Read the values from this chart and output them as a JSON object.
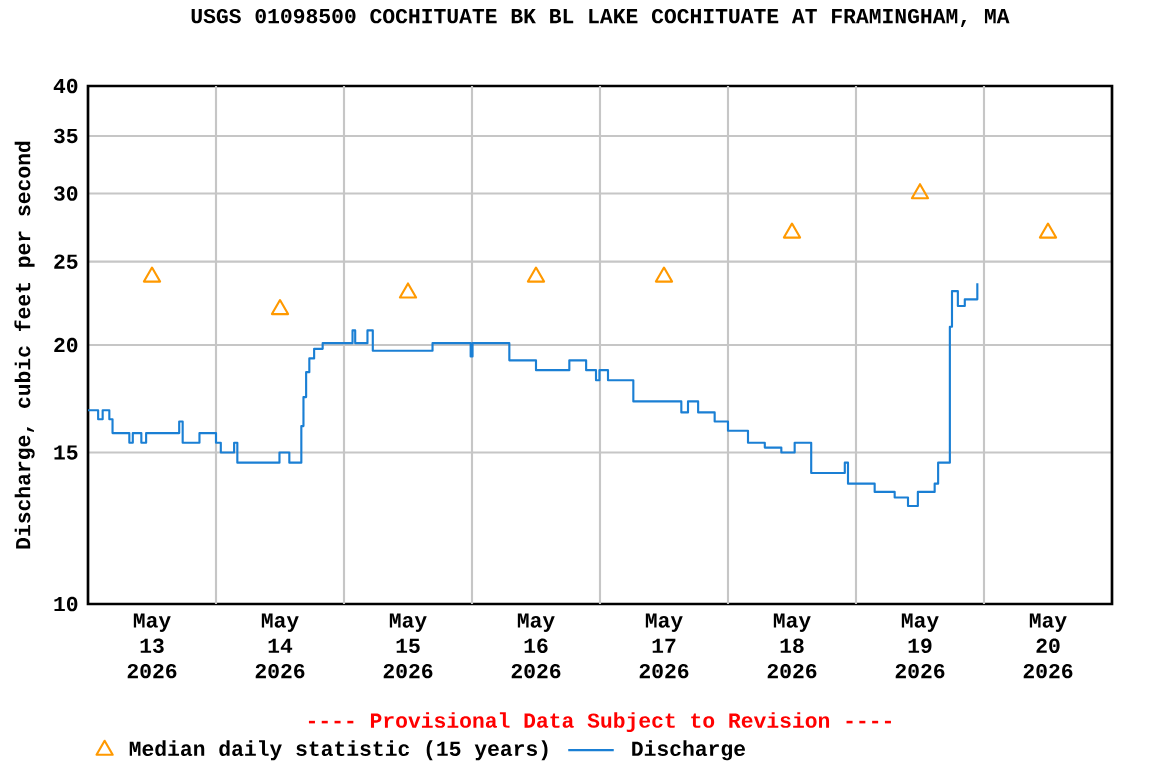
{
  "chart_data": {
    "type": "step",
    "title": "USGS 01098500 COCHITUATE BK BL LAKE COCHITUATE AT FRAMINGHAM, MA",
    "ylabel": "Discharge, cubic feet per second",
    "annotations": [
      "---- Provisional Data Subject to Revision ----"
    ],
    "xlim": [
      "2026-05-13T00:00",
      "2026-05-21T00:00"
    ],
    "xticks": [
      {
        "value": "2026-05-13T12:00",
        "label": "May 13 2026"
      },
      {
        "value": "2026-05-14T12:00",
        "label": "May 14 2026"
      },
      {
        "value": "2026-05-15T12:00",
        "label": "May 15 2026"
      },
      {
        "value": "2026-05-16T12:00",
        "label": "May 16 2026"
      },
      {
        "value": "2026-05-17T12:00",
        "label": "May 17 2026"
      },
      {
        "value": "2026-05-18T12:00",
        "label": "May 18 2026"
      },
      {
        "value": "2026-05-19T12:00",
        "label": "May 19 2026"
      },
      {
        "value": "2026-05-20T12:00",
        "label": "May 20 2026"
      },
      {
        "value": "2026-05-14T00:00",
        "label": null
      },
      {
        "value": "2026-05-15T00:00",
        "label": null
      },
      {
        "value": "2026-05-16T00:00",
        "label": null
      },
      {
        "value": "2026-05-17T00:00",
        "label": null
      },
      {
        "value": "2026-05-18T00:00",
        "label": null
      },
      {
        "value": "2026-05-19T00:00",
        "label": null
      },
      {
        "value": "2026-05-20T00:00",
        "label": null
      }
    ],
    "ylim": [
      10,
      40
    ],
    "yticks": [
      10,
      15,
      20,
      25,
      30,
      35,
      40
    ],
    "log": "y",
    "grid": true,
    "legend": "bottom",
    "series": [
      {
        "name": "Median daily statistic (15 years)",
        "type": "scatter",
        "marker": "triangle",
        "color": "#ff9900",
        "x": [
          "2026-05-13T12:00",
          "2026-05-14T12:00",
          "2026-05-15T12:00",
          "2026-05-16T12:00",
          "2026-05-17T12:00",
          "2026-05-18T12:00",
          "2026-05-19T12:00",
          "2026-05-20T12:00"
        ],
        "values": [
          24,
          22,
          23,
          24,
          24,
          27,
          30,
          27
        ]
      },
      {
        "name": "Discharge",
        "marker": "none",
        "color": "#1a7fd4",
        "x": [
          "2026-05-13T00:00",
          "2026-05-13T01:54",
          "2026-05-13T02:45",
          "2026-05-13T04:00",
          "2026-05-13T04:36",
          "2026-05-13T07:45",
          "2026-05-13T08:24",
          "2026-05-13T10:00",
          "2026-05-13T10:54",
          "2026-05-13T16:30",
          "2026-05-13T17:06",
          "2026-05-13T17:45",
          "2026-05-13T20:54",
          "2026-05-14T00:00",
          "2026-05-14T00:54",
          "2026-05-14T03:24",
          "2026-05-14T04:00",
          "2026-05-14T10:36",
          "2026-05-14T11:54",
          "2026-05-14T13:45",
          "2026-05-14T15:36",
          "2026-05-14T16:00",
          "2026-05-14T16:24",
          "2026-05-14T16:54",
          "2026-05-14T17:30",
          "2026-05-14T18:24",
          "2026-05-14T20:00",
          "2026-05-15T01:24",
          "2026-05-15T01:36",
          "2026-05-15T02:06",
          "2026-05-15T04:24",
          "2026-05-15T05:24",
          "2026-05-15T16:00",
          "2026-05-15T16:36",
          "2026-05-15T23:30",
          "2026-05-15T23:45",
          "2026-05-16T00:06",
          "2026-05-16T06:24",
          "2026-05-16T07:00",
          "2026-05-16T11:24",
          "2026-05-16T12:00",
          "2026-05-16T16:24",
          "2026-05-16T18:15",
          "2026-05-16T21:24",
          "2026-05-16T23:15",
          "2026-05-16T23:54",
          "2026-05-17T01:30",
          "2026-05-17T04:36",
          "2026-05-17T06:15",
          "2026-05-17T09:00",
          "2026-05-17T15:15",
          "2026-05-17T16:30",
          "2026-05-17T18:24",
          "2026-05-17T21:30",
          "2026-05-18T00:00",
          "2026-05-18T03:06",
          "2026-05-18T03:45",
          "2026-05-18T06:54",
          "2026-05-18T10:00",
          "2026-05-18T12:30",
          "2026-05-18T14:24",
          "2026-05-18T15:36",
          "2026-05-18T20:00",
          "2026-05-18T21:54",
          "2026-05-18T22:30",
          "2026-05-19T03:30",
          "2026-05-19T07:15",
          "2026-05-19T09:45",
          "2026-05-19T11:00",
          "2026-05-19T11:36",
          "2026-05-19T14:45",
          "2026-05-19T15:24",
          "2026-05-19T17:00",
          "2026-05-19T17:36",
          "2026-05-19T18:00",
          "2026-05-19T19:06",
          "2026-05-19T20:24",
          "2026-05-19T22:15",
          "2026-05-19T22:45"
        ],
        "values": [
          16.8,
          16.4,
          16.8,
          16.4,
          15.8,
          15.4,
          15.8,
          15.4,
          15.8,
          15.8,
          16.3,
          15.4,
          15.8,
          15.4,
          15.0,
          15.4,
          14.6,
          14.6,
          15.0,
          14.6,
          14.6,
          16.1,
          17.4,
          18.6,
          19.3,
          19.8,
          20.1,
          20.1,
          20.8,
          20.1,
          20.8,
          19.7,
          19.7,
          20.1,
          20.1,
          19.4,
          20.1,
          20.1,
          19.2,
          19.2,
          18.7,
          18.7,
          19.2,
          18.7,
          18.2,
          18.7,
          18.2,
          18.2,
          17.2,
          17.2,
          16.7,
          17.2,
          16.7,
          16.3,
          15.9,
          15.9,
          15.4,
          15.2,
          15.0,
          15.4,
          15.4,
          14.2,
          14.2,
          14.6,
          13.8,
          13.5,
          13.3,
          13.0,
          13.0,
          13.5,
          13.8,
          14.6,
          14.6,
          21.0,
          23.1,
          22.2,
          22.6,
          22.6,
          23.6
        ]
      }
    ]
  }
}
